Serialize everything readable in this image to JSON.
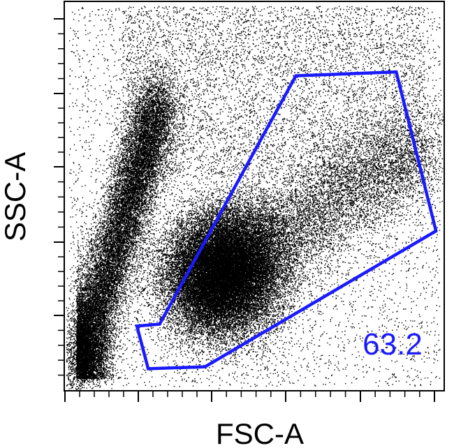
{
  "chart_data": {
    "type": "scatter",
    "title": "",
    "xlabel": "FSC-A",
    "ylabel": "SSC-A",
    "xlim": [
      0,
      1
    ],
    "ylim": [
      0,
      1
    ],
    "tick_labels_shown": false,
    "grid": false,
    "point_color": "#000000",
    "gate": {
      "shape": "polygon",
      "color": "#1a1aff",
      "percentage_label": "63.2",
      "vertices": [
        [
          0.25,
          0.17
        ],
        [
          0.61,
          0.81
        ],
        [
          0.875,
          0.82
        ],
        [
          0.98,
          0.41
        ],
        [
          0.37,
          0.06
        ],
        [
          0.22,
          0.055
        ],
        [
          0.19,
          0.165
        ]
      ]
    },
    "populations": [
      {
        "name": "",
        "center_x": 0.42,
        "center_y": 0.305,
        "spread_x": 0.085,
        "spread_y": 0.075,
        "description_weight": 0.55
      },
      {
        "name": "",
        "center_x": 0.1,
        "center_y": 0.35,
        "spread_x": 0.05,
        "spread_y": 0.25,
        "description_weight": 0.25
      }
    ]
  }
}
